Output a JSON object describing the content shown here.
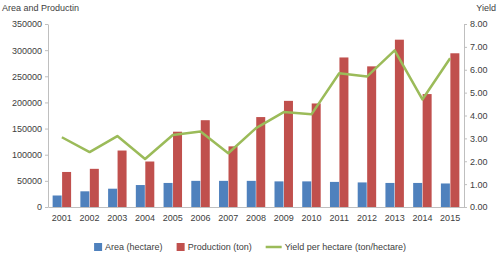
{
  "chart_data": {
    "type": "bar",
    "y_label": "Area and Productin",
    "y2_label": "Yield",
    "categories": [
      "2001",
      "2002",
      "2003",
      "2004",
      "2005",
      "2006",
      "2007",
      "2008",
      "2009",
      "2010",
      "2011",
      "2012",
      "2013",
      "2014",
      "2015"
    ],
    "series": [
      {
        "name": "Area (hectare)",
        "type": "bar",
        "color": "#4f81bd",
        "values": [
          22000,
          30000,
          35000,
          42000,
          46000,
          50000,
          50000,
          50000,
          49000,
          49000,
          48000,
          47000,
          46000,
          46000,
          45000
        ]
      },
      {
        "name": "Production (ton)",
        "type": "bar",
        "color": "#c0504d",
        "values": [
          67000,
          73000,
          108000,
          87000,
          144000,
          166000,
          116000,
          172000,
          203000,
          198000,
          286000,
          269000,
          320000,
          216000,
          294000
        ]
      },
      {
        "name": "Yield per hectare (ton/hectare)",
        "type": "line",
        "axis": "y2",
        "color": "#9bbb59",
        "values": [
          3.05,
          2.4,
          3.1,
          2.1,
          3.15,
          3.3,
          2.35,
          3.45,
          4.15,
          4.05,
          5.85,
          5.7,
          6.85,
          4.7,
          6.5
        ]
      }
    ],
    "ylim": [
      0,
      350000
    ],
    "yticks": [
      0,
      50000,
      100000,
      150000,
      200000,
      250000,
      300000,
      350000
    ],
    "y2lim": [
      0,
      8
    ],
    "y2ticks": [
      {
        "value": 0,
        "label": "0.00"
      },
      {
        "value": 1,
        "label": "1.00"
      },
      {
        "value": 2,
        "label": "2.00"
      },
      {
        "value": 3,
        "label": "3.00"
      },
      {
        "value": 4,
        "label": "4.00"
      },
      {
        "value": 5,
        "label": "5.00"
      },
      {
        "value": 6,
        "label": "6.00"
      },
      {
        "value": 7,
        "label": "7.00"
      },
      {
        "value": 8,
        "label": "8.00"
      }
    ],
    "grid": false,
    "legend": "bottom"
  }
}
